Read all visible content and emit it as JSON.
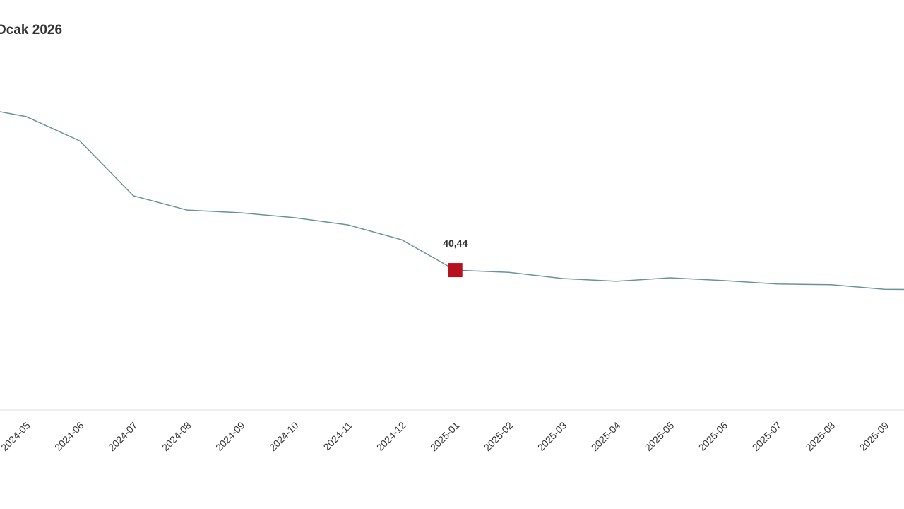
{
  "chart_data": {
    "type": "line",
    "title": "Ocak 2026",
    "categories": [
      null,
      "2024-05",
      "2024-06",
      "2024-07",
      "2024-08",
      "2024-09",
      "2024-10",
      "2024-11",
      "2024-12",
      "2025-01",
      "2025-02",
      "2025-03",
      "2025-04",
      "2025-05",
      "2025-06",
      "2025-07",
      "2025-08",
      "2025-09",
      null
    ],
    "values": [
      87.7,
      84.8,
      77.8,
      61.9,
      57.8,
      57.0,
      55.6,
      53.5,
      49.2,
      40.44,
      39.8,
      38.0,
      37.2,
      38.2,
      37.4,
      36.4,
      36.2,
      34.9,
      34.8
    ],
    "value_labels": [
      null,
      null,
      null,
      null,
      null,
      null,
      null,
      null,
      null,
      "40,44",
      null,
      null,
      null,
      null,
      null,
      null,
      null,
      null,
      null
    ],
    "color": "#6a9494",
    "marker_color": "#b5121b",
    "ylim": [
      0,
      118.5
    ]
  }
}
